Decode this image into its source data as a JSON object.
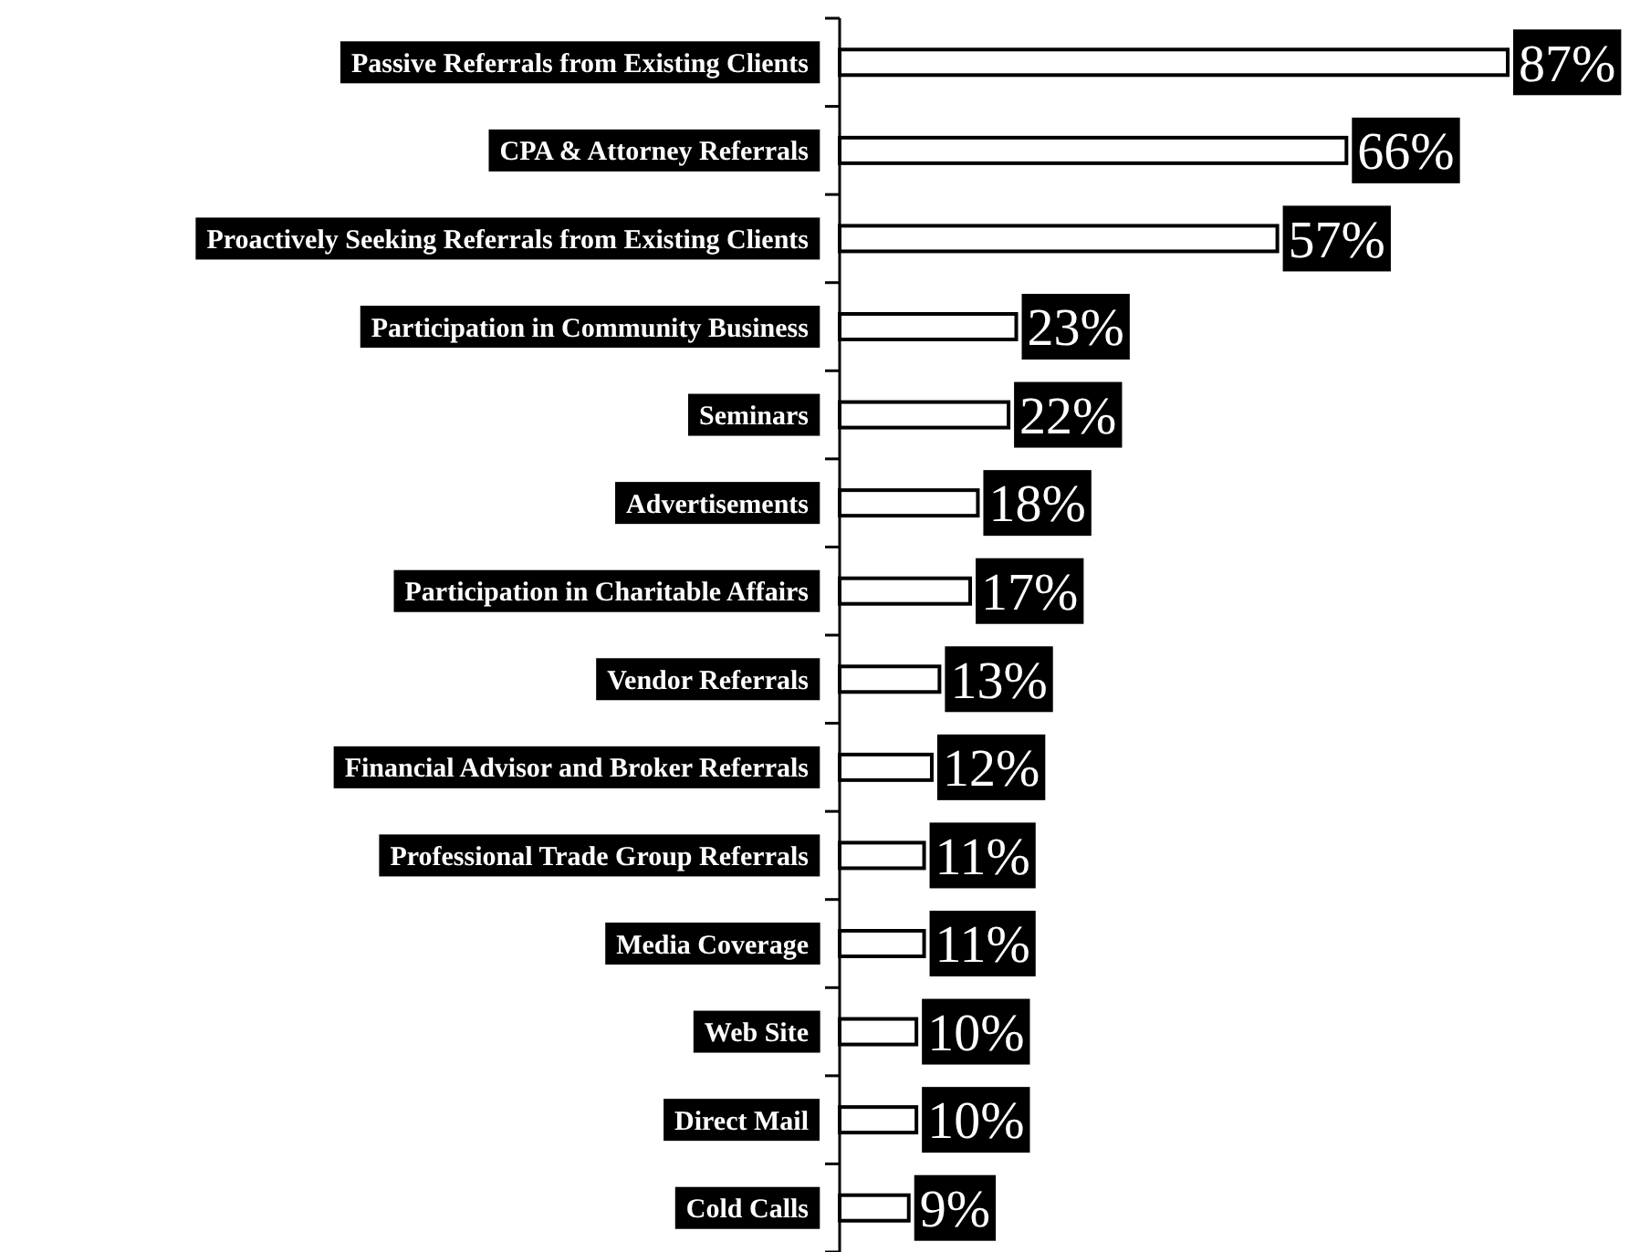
{
  "chart_data": {
    "type": "bar",
    "orientation": "horizontal",
    "categories": [
      "Passive Referrals from Existing Clients",
      "CPA & Attorney Referrals",
      "Proactively Seeking Referrals from Existing Clients",
      "Participation in Community Business",
      "Seminars",
      "Advertisements",
      "Participation in Charitable Affairs",
      "Vendor Referrals",
      "Financial Advisor and Broker Referrals",
      "Professional Trade Group Referrals",
      "Media Coverage",
      "Web Site",
      "Direct Mail",
      "Cold Calls"
    ],
    "values": [
      87,
      66,
      57,
      23,
      22,
      18,
      17,
      13,
      12,
      11,
      11,
      10,
      10,
      9
    ],
    "value_labels": [
      "87%",
      "66%",
      "57%",
      "23%",
      "22%",
      "18%",
      "17%",
      "13%",
      "12%",
      "11%",
      "11%",
      "10%",
      "10%",
      "9%"
    ],
    "color": "#ffffff"
  }
}
